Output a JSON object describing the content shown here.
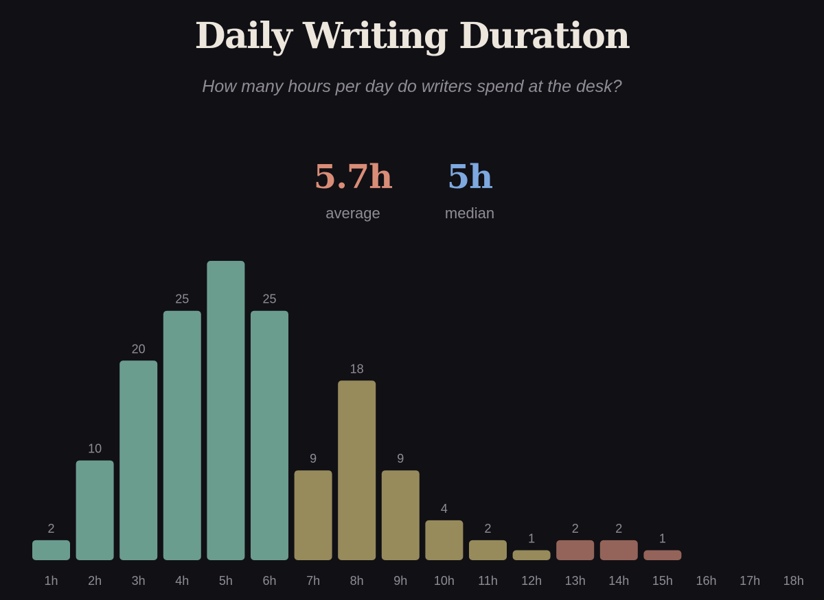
{
  "title": "Daily Writing Duration",
  "subtitle": "How many hours per day do writers spend at the desk?",
  "stats": {
    "average": {
      "value": "5.7h",
      "label": "average",
      "color": "#d98d77"
    },
    "median": {
      "value": "5h",
      "label": "median",
      "color": "#7ea8e0"
    }
  },
  "chart_data": {
    "type": "bar",
    "categories": [
      "1h",
      "2h",
      "3h",
      "4h",
      "5h",
      "6h",
      "7h",
      "8h",
      "9h",
      "10h",
      "11h",
      "12h",
      "13h",
      "14h",
      "15h",
      "16h",
      "17h",
      "18h"
    ],
    "values": [
      2,
      10,
      20,
      25,
      30,
      25,
      9,
      18,
      9,
      4,
      2,
      1,
      2,
      2,
      1,
      0,
      0,
      0
    ],
    "value_labels": [
      "2",
      "10",
      "20",
      "25",
      "",
      "25",
      "9",
      "18",
      "9",
      "4",
      "2",
      "1",
      "2",
      "2",
      "1",
      "",
      "",
      ""
    ],
    "color_groups": [
      {
        "categories": [
          "1h",
          "2h",
          "3h",
          "4h",
          "5h",
          "6h"
        ],
        "color": "#6b9d8f"
      },
      {
        "categories": [
          "7h",
          "8h",
          "9h",
          "10h",
          "11h",
          "12h"
        ],
        "color": "#978b5c"
      },
      {
        "categories": [
          "13h",
          "14h",
          "15h",
          "16h",
          "17h",
          "18h"
        ],
        "color": "#94645a"
      }
    ],
    "ylim": [
      0,
      30
    ],
    "grid": false,
    "legend": "none"
  }
}
